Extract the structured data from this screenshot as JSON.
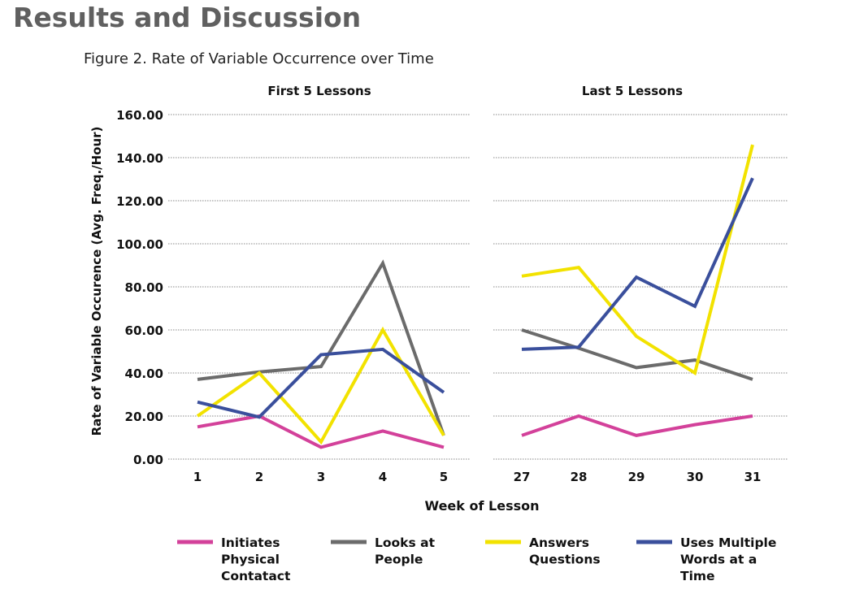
{
  "page": {
    "heading": "Results and Discussion",
    "figure_caption": "Figure 2. Rate of Variable Occurrence over Time"
  },
  "colors": {
    "initiates": "#d3419a",
    "looks": "#6b6b6b",
    "answers": "#f2e200",
    "uses": "#3a4f9c",
    "grid": "#888888"
  },
  "chart_data": [
    {
      "type": "line",
      "title": "First 5 Lessons",
      "xlabel": "Week of Lesson",
      "ylabel": "Rate of Variable Occurence (Avg. Freq./Hour)",
      "ylim": [
        0,
        160
      ],
      "yticks": [
        "0.00",
        "20.00",
        "40.00",
        "60.00",
        "80.00",
        "100.00",
        "120.00",
        "140.00",
        "160.00"
      ],
      "categories": [
        "1",
        "2",
        "3",
        "4",
        "5"
      ],
      "series": [
        {
          "name": "Initiates Physical Contatact",
          "key": "initiates",
          "values": [
            15,
            20,
            5.5,
            13,
            5.5
          ]
        },
        {
          "name": "Looks at People",
          "key": "looks",
          "values": [
            37,
            40.5,
            43,
            91,
            11
          ]
        },
        {
          "name": "Answers Questions",
          "key": "answers",
          "values": [
            20,
            40,
            8,
            60,
            11
          ]
        },
        {
          "name": "Uses Multiple Words at a Time",
          "key": "uses",
          "values": [
            26.5,
            19.5,
            48.5,
            51,
            31
          ]
        }
      ]
    },
    {
      "type": "line",
      "title": "Last 5 Lessons",
      "ylim": [
        0,
        160
      ],
      "categories": [
        "27",
        "28",
        "29",
        "30",
        "31"
      ],
      "series": [
        {
          "name": "Initiates Physical Contatact",
          "key": "initiates",
          "values": [
            11,
            20,
            11,
            16,
            20
          ]
        },
        {
          "name": "Looks at People",
          "key": "looks",
          "values": [
            60,
            51.5,
            42.5,
            46,
            37
          ]
        },
        {
          "name": "Answers Questions",
          "key": "answers",
          "values": [
            85,
            89,
            57,
            40,
            146
          ]
        },
        {
          "name": "Uses Multiple Words at a Time",
          "key": "uses",
          "values": [
            51,
            52,
            84.5,
            71,
            130.5
          ]
        }
      ]
    }
  ],
  "legend": [
    {
      "key": "initiates",
      "lines": [
        "Initiates",
        "Physical",
        "Contatact"
      ]
    },
    {
      "key": "looks",
      "lines": [
        "Looks at",
        "People"
      ]
    },
    {
      "key": "answers",
      "lines": [
        "Answers",
        "Questions"
      ]
    },
    {
      "key": "uses",
      "lines": [
        "Uses Multiple",
        "Words at a",
        "Time"
      ]
    }
  ]
}
